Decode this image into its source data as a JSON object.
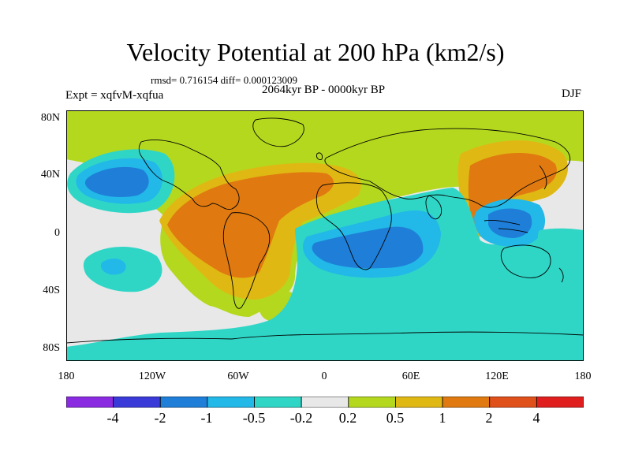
{
  "figure": {
    "title": "Velocity Potential at 200 hPa (km2/s)",
    "stats": "rmsd= 0.716154 diff= 0.000123009",
    "period": "2064kyr BP - 0000kyr BP",
    "experiment": "Expt = xqfvM-xqfua",
    "season": "DJF"
  },
  "axes": {
    "lat_labels": [
      "80N",
      "40N",
      "0",
      "40S",
      "80S"
    ],
    "lon_labels": [
      "180",
      "120W",
      "60W",
      "0",
      "60E",
      "120E",
      "180"
    ]
  },
  "colorbar": {
    "labels": [
      "-4",
      "-2",
      "-1",
      "-0.5",
      "-0.2",
      "0.2",
      "0.5",
      "1",
      "2",
      "4"
    ],
    "colors": [
      "#8a2be2",
      "#3a3ad8",
      "#1f7fd8",
      "#22b8e8",
      "#2fd6c6",
      "#e8e8e8",
      "#b4d81e",
      "#e0b814",
      "#e07a10",
      "#e0501a",
      "#e01e1e"
    ]
  },
  "palette": {
    "neutral": "#e8e8e8",
    "pos1": "#b4d81e",
    "pos2": "#e0b814",
    "pos3": "#e07a10",
    "neg1": "#2fd6c6",
    "neg2": "#22b8e8",
    "neg3": "#1f7fd8",
    "coast": "#000000"
  }
}
